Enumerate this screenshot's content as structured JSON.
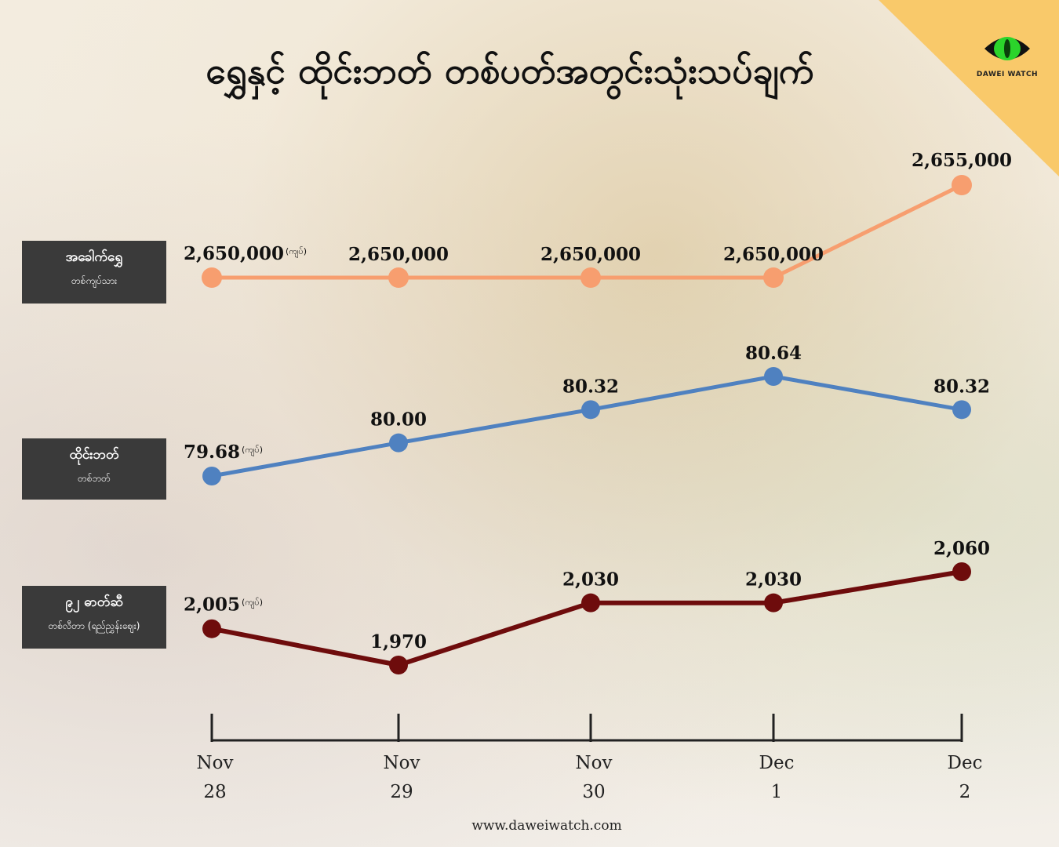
{
  "title": "ရွှေနှင့် ထိုင်းဘတ် တစ်ပတ်အတွင်းသုံးသပ်ချက်",
  "logo": {
    "text": "DAWEI WATCH",
    "icon": "eye-icon"
  },
  "footer": "www.daweiwatch.com",
  "colors": {
    "gold": "#f79e6f",
    "thb": "#4f81c0",
    "fuel": "#6e0c0c",
    "label_bg": "#3a3a3a",
    "corner": "#f9c96a"
  },
  "labels": {
    "gold": {
      "main": "အခေါက်ရွှေ",
      "sub": "တစ်ကျပ်သား"
    },
    "thb": {
      "main": "ထိုင်းဘတ်",
      "sub": "တစ်ဘတ်"
    },
    "fuel": {
      "main": "၉၂ ဓာတ်ဆီ",
      "sub": "တစ်လီတာ (ရည်ညွှန်းဈေး)"
    }
  },
  "unit_label": "(ကျပ်)",
  "chart_data": {
    "type": "line",
    "x": [
      "Nov 28",
      "Nov 29",
      "Nov 30",
      "Dec 1",
      "Dec 2"
    ],
    "x_ticks": [
      [
        "Nov",
        "28"
      ],
      [
        "Nov",
        "29"
      ],
      [
        "Nov",
        "30"
      ],
      [
        "Dec",
        "1"
      ],
      [
        "Dec",
        "2"
      ]
    ],
    "series": [
      {
        "key": "gold",
        "name": "အခေါက်ရွှေ",
        "values": [
          2650000,
          2650000,
          2650000,
          2650000,
          2655000
        ],
        "labels": [
          "2,650,000",
          "2,650,000",
          "2,650,000",
          "2,650,000",
          "2,655,000"
        ]
      },
      {
        "key": "thb",
        "name": "ထိုင်းဘတ်",
        "values": [
          79.68,
          80.0,
          80.32,
          80.64,
          80.32
        ],
        "labels": [
          "79.68",
          "80.00",
          "80.32",
          "80.64",
          "80.32"
        ]
      },
      {
        "key": "fuel",
        "name": "၉၂ ဓာတ်ဆီ",
        "values": [
          2005,
          1970,
          2030,
          2030,
          2060
        ],
        "labels": [
          "2,005",
          "1,970",
          "2,030",
          "2,030",
          "2,060"
        ]
      }
    ]
  }
}
